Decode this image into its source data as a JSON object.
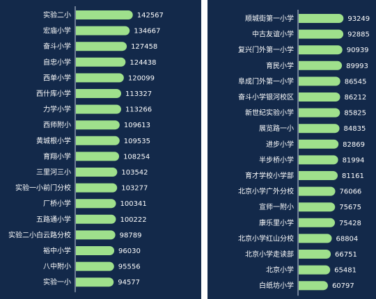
{
  "colors": {
    "background": "#13294a",
    "bar": "#9fe08c",
    "axis": "#c9d3e0",
    "label": "#ffffff",
    "value": "#ffffff"
  },
  "chart_data": [
    {
      "type": "bar",
      "orientation": "horizontal",
      "title": "",
      "categories": [
        "实验二小",
        "宏庙小学",
        "奋斗小学",
        "自忠小学",
        "西单小学",
        "西什库小学",
        "力学小学",
        "西师附小",
        "黄城根小学",
        "育翔小学",
        "三里河三小",
        "实验一小前门分校",
        "厂桥小学",
        "五路通小学",
        "实验二小白云路分校",
        "裕中小学",
        "八中附小",
        "实验一小"
      ],
      "values": [
        142567,
        134667,
        127458,
        124438,
        120099,
        113327,
        113266,
        109613,
        109535,
        108254,
        103542,
        103277,
        100341,
        100222,
        98789,
        96030,
        95556,
        94577
      ],
      "xlim": [
        0,
        150000
      ]
    },
    {
      "type": "bar",
      "orientation": "horizontal",
      "title": "",
      "categories": [
        "顺城街第一小学",
        "中古友谊小学",
        "复兴门外第一小学",
        "育民小学",
        "阜成门外第一小学",
        "奋斗小学银河校区",
        "新世纪实验小学",
        "展览路一小",
        "进步小学",
        "半步桥小学",
        "育才学校小学部",
        "北京小学广外分校",
        "宣师一附小",
        "康乐里小学",
        "北京小学红山分校",
        "北京小学走读部",
        "北京小学",
        "白纸坊小学"
      ],
      "values": [
        93249,
        92885,
        90939,
        89993,
        86545,
        86212,
        85825,
        84835,
        82869,
        81994,
        81161,
        76066,
        75675,
        75428,
        68804,
        66751,
        65481,
        60797
      ],
      "xlim": [
        0,
        100000
      ]
    }
  ]
}
